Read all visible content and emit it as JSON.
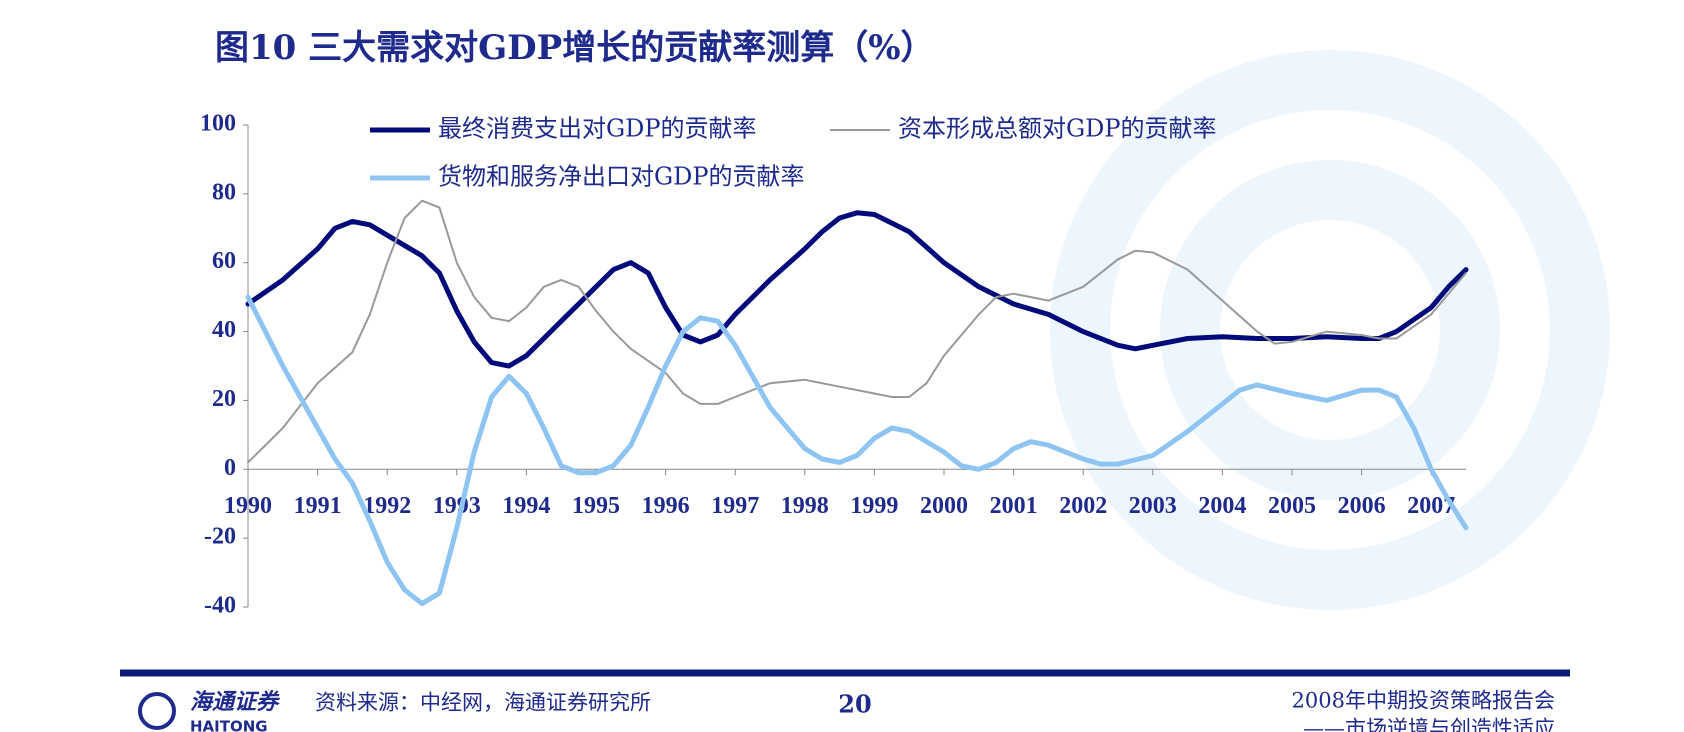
{
  "chart_data": {
    "type": "line",
    "title": "图10  三大需求对GDP增长的贡献率测算（%）",
    "xlim": [
      1990,
      2007.5
    ],
    "xticks": [
      1990,
      1991,
      1992,
      1993,
      1994,
      1995,
      1996,
      1997,
      1998,
      1999,
      2000,
      2001,
      2002,
      2003,
      2004,
      2005,
      2006,
      2007
    ],
    "ylim": [
      -40,
      100
    ],
    "yticks": [
      -40,
      -20,
      0,
      20,
      40,
      60,
      80,
      100
    ],
    "grid": false,
    "series": [
      {
        "name": "最终消费支出对GDP的贡献率",
        "color": "#000a7a",
        "width": 5,
        "x": [
          1990,
          1990.5,
          1991,
          1991.25,
          1991.5,
          1991.75,
          1992,
          1992.5,
          1992.75,
          1993,
          1993.25,
          1993.5,
          1993.75,
          1994,
          1994.5,
          1995,
          1995.25,
          1995.5,
          1995.75,
          1996,
          1996.25,
          1996.5,
          1996.75,
          1997,
          1997.5,
          1998,
          1998.25,
          1998.5,
          1998.75,
          1999,
          1999.5,
          2000,
          2000.5,
          2001,
          2001.5,
          2002,
          2002.5,
          2002.75,
          2003,
          2003.5,
          2004,
          2004.5,
          2005,
          2005.5,
          2006,
          2006.25,
          2006.5,
          2007,
          2007.25,
          2007.5
        ],
        "values": [
          48,
          55,
          64,
          70,
          72,
          71,
          68,
          62,
          57,
          46,
          37,
          31,
          30,
          33,
          43,
          53,
          58,
          60,
          57,
          47,
          39,
          37,
          39,
          45,
          55,
          64,
          69,
          73,
          74.5,
          74,
          69,
          60,
          53,
          48,
          45,
          40,
          36,
          35,
          36,
          38,
          38.5,
          38,
          38,
          38.5,
          38,
          38,
          40,
          47,
          53,
          58
        ]
      },
      {
        "name": "资本形成总额对GDP的贡献率",
        "color": "#999999",
        "width": 2,
        "x": [
          1990,
          1990.5,
          1991,
          1991.5,
          1991.75,
          1992,
          1992.25,
          1992.5,
          1992.75,
          1993,
          1993.25,
          1993.5,
          1993.75,
          1994,
          1994.25,
          1994.5,
          1994.75,
          1995,
          1995.25,
          1995.5,
          1996,
          1996.25,
          1996.5,
          1996.75,
          1997,
          1997.5,
          1998,
          1998.5,
          1999,
          1999.25,
          1999.5,
          1999.75,
          2000,
          2000.5,
          2000.75,
          2001,
          2001.5,
          2002,
          2002.5,
          2002.75,
          2003,
          2003.5,
          2004,
          2004.5,
          2004.75,
          2005,
          2005.5,
          2006,
          2006.25,
          2006.5,
          2007,
          2007.5
        ],
        "values": [
          2,
          12,
          25,
          34,
          45,
          60,
          73,
          78,
          76,
          60,
          50,
          44,
          43,
          47,
          53,
          55,
          53,
          46,
          40,
          35,
          28,
          22,
          19,
          19,
          21,
          25,
          26,
          24,
          22,
          21,
          21,
          25,
          33,
          45,
          50,
          51,
          49,
          53,
          61,
          63.5,
          63,
          58,
          49,
          40,
          36.5,
          37,
          40,
          39,
          38,
          38,
          45,
          57
        ]
      },
      {
        "name": "货物和服务净出口对GDP的贡献率",
        "color": "#8ec4f2",
        "width": 5,
        "x": [
          1990,
          1990.5,
          1991,
          1991.25,
          1991.5,
          1991.75,
          1992,
          1992.25,
          1992.5,
          1992.75,
          1993,
          1993.25,
          1993.5,
          1993.75,
          1994,
          1994.25,
          1994.5,
          1994.75,
          1995,
          1995.25,
          1995.5,
          1995.75,
          1996,
          1996.25,
          1996.5,
          1996.75,
          1997,
          1997.5,
          1998,
          1998.25,
          1998.5,
          1998.75,
          1999,
          1999.25,
          1999.5,
          2000,
          2000.25,
          2000.5,
          2000.75,
          2001,
          2001.25,
          2001.5,
          2002,
          2002.25,
          2002.5,
          2003,
          2003.5,
          2004,
          2004.25,
          2004.5,
          2005,
          2005.5,
          2006,
          2006.25,
          2006.5,
          2006.75,
          2007,
          2007.25,
          2007.5
        ],
        "values": [
          50,
          30,
          12,
          3,
          -4,
          -15,
          -27,
          -35,
          -39,
          -36,
          -17,
          5,
          21,
          27,
          22,
          12,
          1,
          -1,
          -1,
          1,
          7,
          18,
          30,
          40,
          44,
          43,
          36,
          18,
          6,
          3,
          2,
          4,
          9,
          12,
          11,
          5,
          1,
          0,
          2,
          6,
          8,
          7,
          3,
          1.5,
          1.5,
          4,
          11,
          19,
          23,
          24.5,
          22,
          20,
          23,
          23,
          21,
          12,
          0,
          -9,
          -17
        ]
      }
    ]
  },
  "footer": {
    "logo": "海通证券",
    "logo_en": "HAITONG",
    "source": "资料来源：中经网，海通证券研究所",
    "page": "20",
    "report": "2008年中期投资策略报告会",
    "subtitle": "——市场逆境与创造性适应"
  }
}
